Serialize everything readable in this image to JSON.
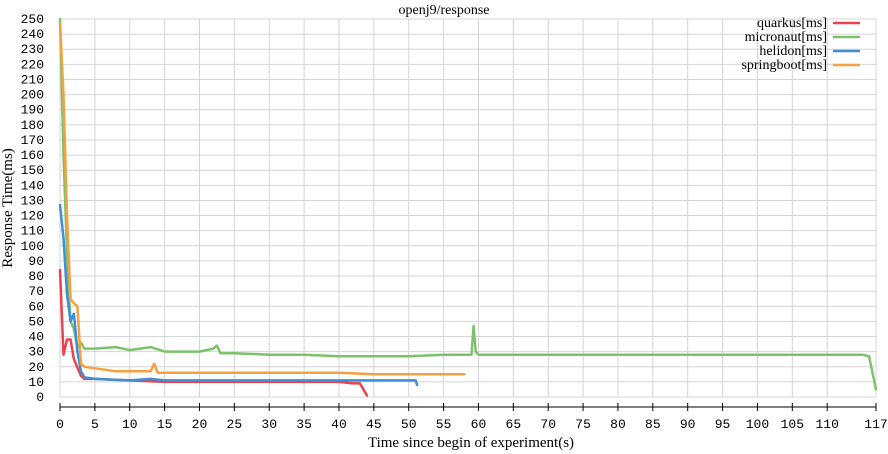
{
  "chart_data": {
    "type": "line",
    "title": "openj9/response",
    "xlabel": "Time since begin of experiment(s)",
    "ylabel": "Response Time(ms)",
    "xlim": [
      0,
      117
    ],
    "ylim": [
      0,
      250
    ],
    "x_ticks": [
      0,
      5,
      10,
      15,
      20,
      25,
      30,
      35,
      40,
      45,
      50,
      55,
      60,
      65,
      70,
      75,
      80,
      85,
      90,
      95,
      100,
      105,
      110,
      117
    ],
    "y_ticks": [
      0,
      10,
      20,
      30,
      40,
      50,
      60,
      70,
      80,
      90,
      100,
      110,
      120,
      130,
      140,
      150,
      160,
      170,
      180,
      190,
      200,
      210,
      220,
      230,
      240,
      250
    ],
    "grid": true,
    "legend_position": "top-right",
    "series": [
      {
        "name": "quarkus[ms]",
        "color": "#e8434e",
        "points": [
          [
            0,
            84
          ],
          [
            0.5,
            28
          ],
          [
            1,
            38
          ],
          [
            1.5,
            38
          ],
          [
            2,
            25
          ],
          [
            3,
            14
          ],
          [
            3.5,
            12
          ],
          [
            5,
            12
          ],
          [
            10,
            11
          ],
          [
            15,
            10
          ],
          [
            20,
            10
          ],
          [
            25,
            10
          ],
          [
            30,
            10
          ],
          [
            35,
            10
          ],
          [
            40,
            10
          ],
          [
            42,
            9
          ],
          [
            43,
            9
          ],
          [
            43.5,
            5
          ],
          [
            44,
            1
          ]
        ]
      },
      {
        "name": "micronaut[ms]",
        "color": "#7cc26a",
        "points": [
          [
            0,
            250
          ],
          [
            0.5,
            160
          ],
          [
            1,
            95
          ],
          [
            1.5,
            50
          ],
          [
            2,
            45
          ],
          [
            2.5,
            33
          ],
          [
            3,
            36
          ],
          [
            3.5,
            32
          ],
          [
            5,
            32
          ],
          [
            8,
            33
          ],
          [
            10,
            31
          ],
          [
            13,
            33
          ],
          [
            15,
            30
          ],
          [
            20,
            30
          ],
          [
            22,
            32
          ],
          [
            22.5,
            34
          ],
          [
            23,
            29
          ],
          [
            25,
            29
          ],
          [
            30,
            28
          ],
          [
            35,
            28
          ],
          [
            40,
            27
          ],
          [
            45,
            27
          ],
          [
            50,
            27
          ],
          [
            55,
            28
          ],
          [
            58,
            28
          ],
          [
            59,
            28
          ],
          [
            59.3,
            47
          ],
          [
            59.6,
            30
          ],
          [
            60,
            28
          ],
          [
            65,
            28
          ],
          [
            70,
            28
          ],
          [
            75,
            28
          ],
          [
            80,
            28
          ],
          [
            85,
            28
          ],
          [
            90,
            28
          ],
          [
            95,
            28
          ],
          [
            100,
            28
          ],
          [
            105,
            28
          ],
          [
            110,
            28
          ],
          [
            115,
            28
          ],
          [
            116,
            27
          ],
          [
            117,
            5
          ]
        ]
      },
      {
        "name": "helidon[ms]",
        "color": "#3f8fd6",
        "points": [
          [
            0,
            127
          ],
          [
            0.5,
            105
          ],
          [
            1,
            68
          ],
          [
            1.5,
            50
          ],
          [
            2,
            55
          ],
          [
            2.5,
            30
          ],
          [
            3,
            17
          ],
          [
            3.5,
            13
          ],
          [
            5,
            12
          ],
          [
            10,
            11
          ],
          [
            13,
            12
          ],
          [
            15,
            11
          ],
          [
            20,
            11
          ],
          [
            25,
            11
          ],
          [
            30,
            11
          ],
          [
            35,
            11
          ],
          [
            40,
            11
          ],
          [
            45,
            11
          ],
          [
            50,
            11
          ],
          [
            51,
            11
          ],
          [
            51.2,
            8
          ]
        ]
      },
      {
        "name": "springboot[ms]",
        "color": "#f5a142",
        "points": [
          [
            0,
            247
          ],
          [
            0.5,
            200
          ],
          [
            1,
            120
          ],
          [
            1.5,
            65
          ],
          [
            2,
            62
          ],
          [
            2.5,
            60
          ],
          [
            3,
            22
          ],
          [
            3.5,
            20
          ],
          [
            5,
            19
          ],
          [
            8,
            17
          ],
          [
            10,
            17
          ],
          [
            13,
            17
          ],
          [
            13.5,
            22
          ],
          [
            14,
            16
          ],
          [
            15,
            16
          ],
          [
            20,
            16
          ],
          [
            25,
            16
          ],
          [
            30,
            16
          ],
          [
            35,
            16
          ],
          [
            40,
            16
          ],
          [
            45,
            15
          ],
          [
            50,
            15
          ],
          [
            55,
            15
          ],
          [
            58,
            15
          ]
        ]
      }
    ]
  }
}
